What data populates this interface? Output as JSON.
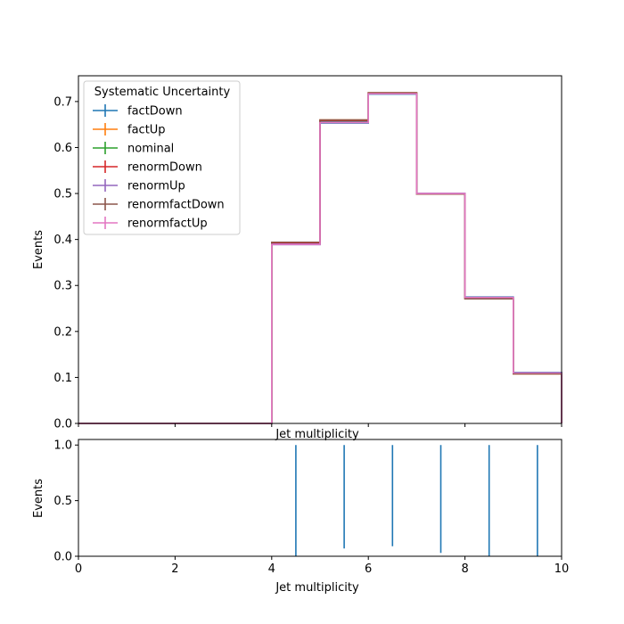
{
  "chart_data": [
    {
      "type": "line",
      "drawstyle": "steps",
      "xlabel": "Jet multiplicity",
      "ylabel": "Events",
      "xlim": [
        0,
        10
      ],
      "ylim": [
        0,
        0.756
      ],
      "xticks": [
        0,
        2,
        4,
        6,
        8,
        10
      ],
      "yticks": [
        0.0,
        0.1,
        0.2,
        0.3,
        0.4,
        0.5,
        0.6,
        0.7
      ],
      "ytick_labels": [
        "0.0",
        "0.1",
        "0.2",
        "0.3",
        "0.4",
        "0.5",
        "0.6",
        "0.7"
      ],
      "bin_edges": [
        0,
        1,
        2,
        3,
        4,
        5,
        6,
        7,
        8,
        9,
        10
      ],
      "legend": {
        "title": "Systematic Uncertainty",
        "placement": "upper-left"
      },
      "series": [
        {
          "name": "factDown",
          "color": "#1f77b4",
          "values": [
            0,
            0,
            0,
            0,
            0.389,
            0.653,
            0.716,
            0.5,
            0.275,
            0.111
          ]
        },
        {
          "name": "factUp",
          "color": "#ff7f0e",
          "values": [
            0,
            0,
            0,
            0,
            0.393,
            0.66,
            0.719,
            0.499,
            0.271,
            0.108
          ]
        },
        {
          "name": "nominal",
          "color": "#2ca02c",
          "values": [
            0,
            0,
            0,
            0,
            0.391,
            0.657,
            0.718,
            0.499,
            0.273,
            0.109
          ]
        },
        {
          "name": "renormDown",
          "color": "#d62728",
          "values": [
            0,
            0,
            0,
            0,
            0.392,
            0.659,
            0.718,
            0.499,
            0.272,
            0.108
          ]
        },
        {
          "name": "renormUp",
          "color": "#9467bd",
          "values": [
            0,
            0,
            0,
            0,
            0.39,
            0.655,
            0.717,
            0.5,
            0.274,
            0.11
          ]
        },
        {
          "name": "renormfactDown",
          "color": "#8c564b",
          "values": [
            0,
            0,
            0,
            0,
            0.394,
            0.66,
            0.719,
            0.499,
            0.271,
            0.108
          ]
        },
        {
          "name": "renormfactUp",
          "color": "#e377c2",
          "values": [
            0,
            0,
            0,
            0,
            0.389,
            0.654,
            0.717,
            0.5,
            0.274,
            0.11
          ]
        }
      ]
    },
    {
      "type": "line",
      "drawstyle": "errorbar",
      "xlabel": "Jet multiplicity",
      "ylabel": "Events",
      "xlim": [
        0,
        10
      ],
      "ylim": [
        0,
        1.05
      ],
      "xticks": [
        0,
        2,
        4,
        6,
        8,
        10
      ],
      "yticks": [
        0.0,
        0.5,
        1.0
      ],
      "ytick_labels": [
        "0.0",
        "0.5",
        "1.0"
      ],
      "series": [
        {
          "color": "#1f77b4",
          "x": [
            4.5,
            5.5,
            6.5,
            7.5,
            8.5,
            9.5
          ],
          "y": [
            0.5,
            0.5,
            0.5,
            0.5,
            0.5,
            0.5
          ],
          "err_low": [
            0.0,
            0.07,
            0.09,
            0.03,
            0.0,
            0.0
          ],
          "err_high": [
            1.0,
            1.0,
            1.0,
            1.0,
            1.0,
            1.0
          ]
        }
      ]
    }
  ]
}
